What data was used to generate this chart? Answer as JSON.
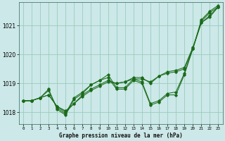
{
  "title": "Graphe pression niveau de la mer (hPa)",
  "background_color": "#cce8e8",
  "grid_color": "#99ccbb",
  "line_color": "#1a6b1a",
  "ylim": [
    1017.6,
    1021.8
  ],
  "yticks": [
    1018,
    1019,
    1020,
    1021
  ],
  "figsize": [
    3.2,
    2.0
  ],
  "dpi": 100,
  "series": [
    [
      1018.4,
      1018.4,
      1018.5,
      1018.6,
      1018.2,
      1018.0,
      1018.3,
      1018.55,
      1018.75,
      1018.9,
      1019.05,
      1019.0,
      1019.05,
      1019.15,
      1019.15,
      1019.05,
      1019.25,
      1019.35,
      1019.4,
      1019.5,
      1020.2,
      1021.1,
      1021.3,
      1021.65
    ],
    [
      1018.4,
      1018.4,
      1018.5,
      1018.75,
      1018.15,
      1017.95,
      1018.5,
      1018.7,
      1018.95,
      1019.1,
      1019.3,
      1018.85,
      1018.85,
      1019.15,
      1019.05,
      1018.3,
      1018.4,
      1018.65,
      1018.7,
      1019.35,
      1020.2,
      1021.15,
      1021.45,
      1021.65
    ],
    [
      1018.4,
      1018.4,
      1018.5,
      1018.8,
      1018.1,
      1017.9,
      1018.45,
      1018.65,
      1018.95,
      1019.1,
      1019.2,
      1018.8,
      1018.8,
      1019.1,
      1019.0,
      1018.25,
      1018.35,
      1018.6,
      1018.6,
      1019.3,
      1020.2,
      1021.2,
      1021.5,
      1021.7
    ],
    [
      1018.4,
      1018.4,
      1018.5,
      1018.6,
      1018.2,
      1018.05,
      1018.3,
      1018.6,
      1018.8,
      1018.95,
      1019.1,
      1019.0,
      1019.05,
      1019.2,
      1019.2,
      1019.0,
      1019.25,
      1019.4,
      1019.45,
      1019.55,
      1020.25,
      1021.1,
      1021.35,
      1021.65
    ]
  ]
}
